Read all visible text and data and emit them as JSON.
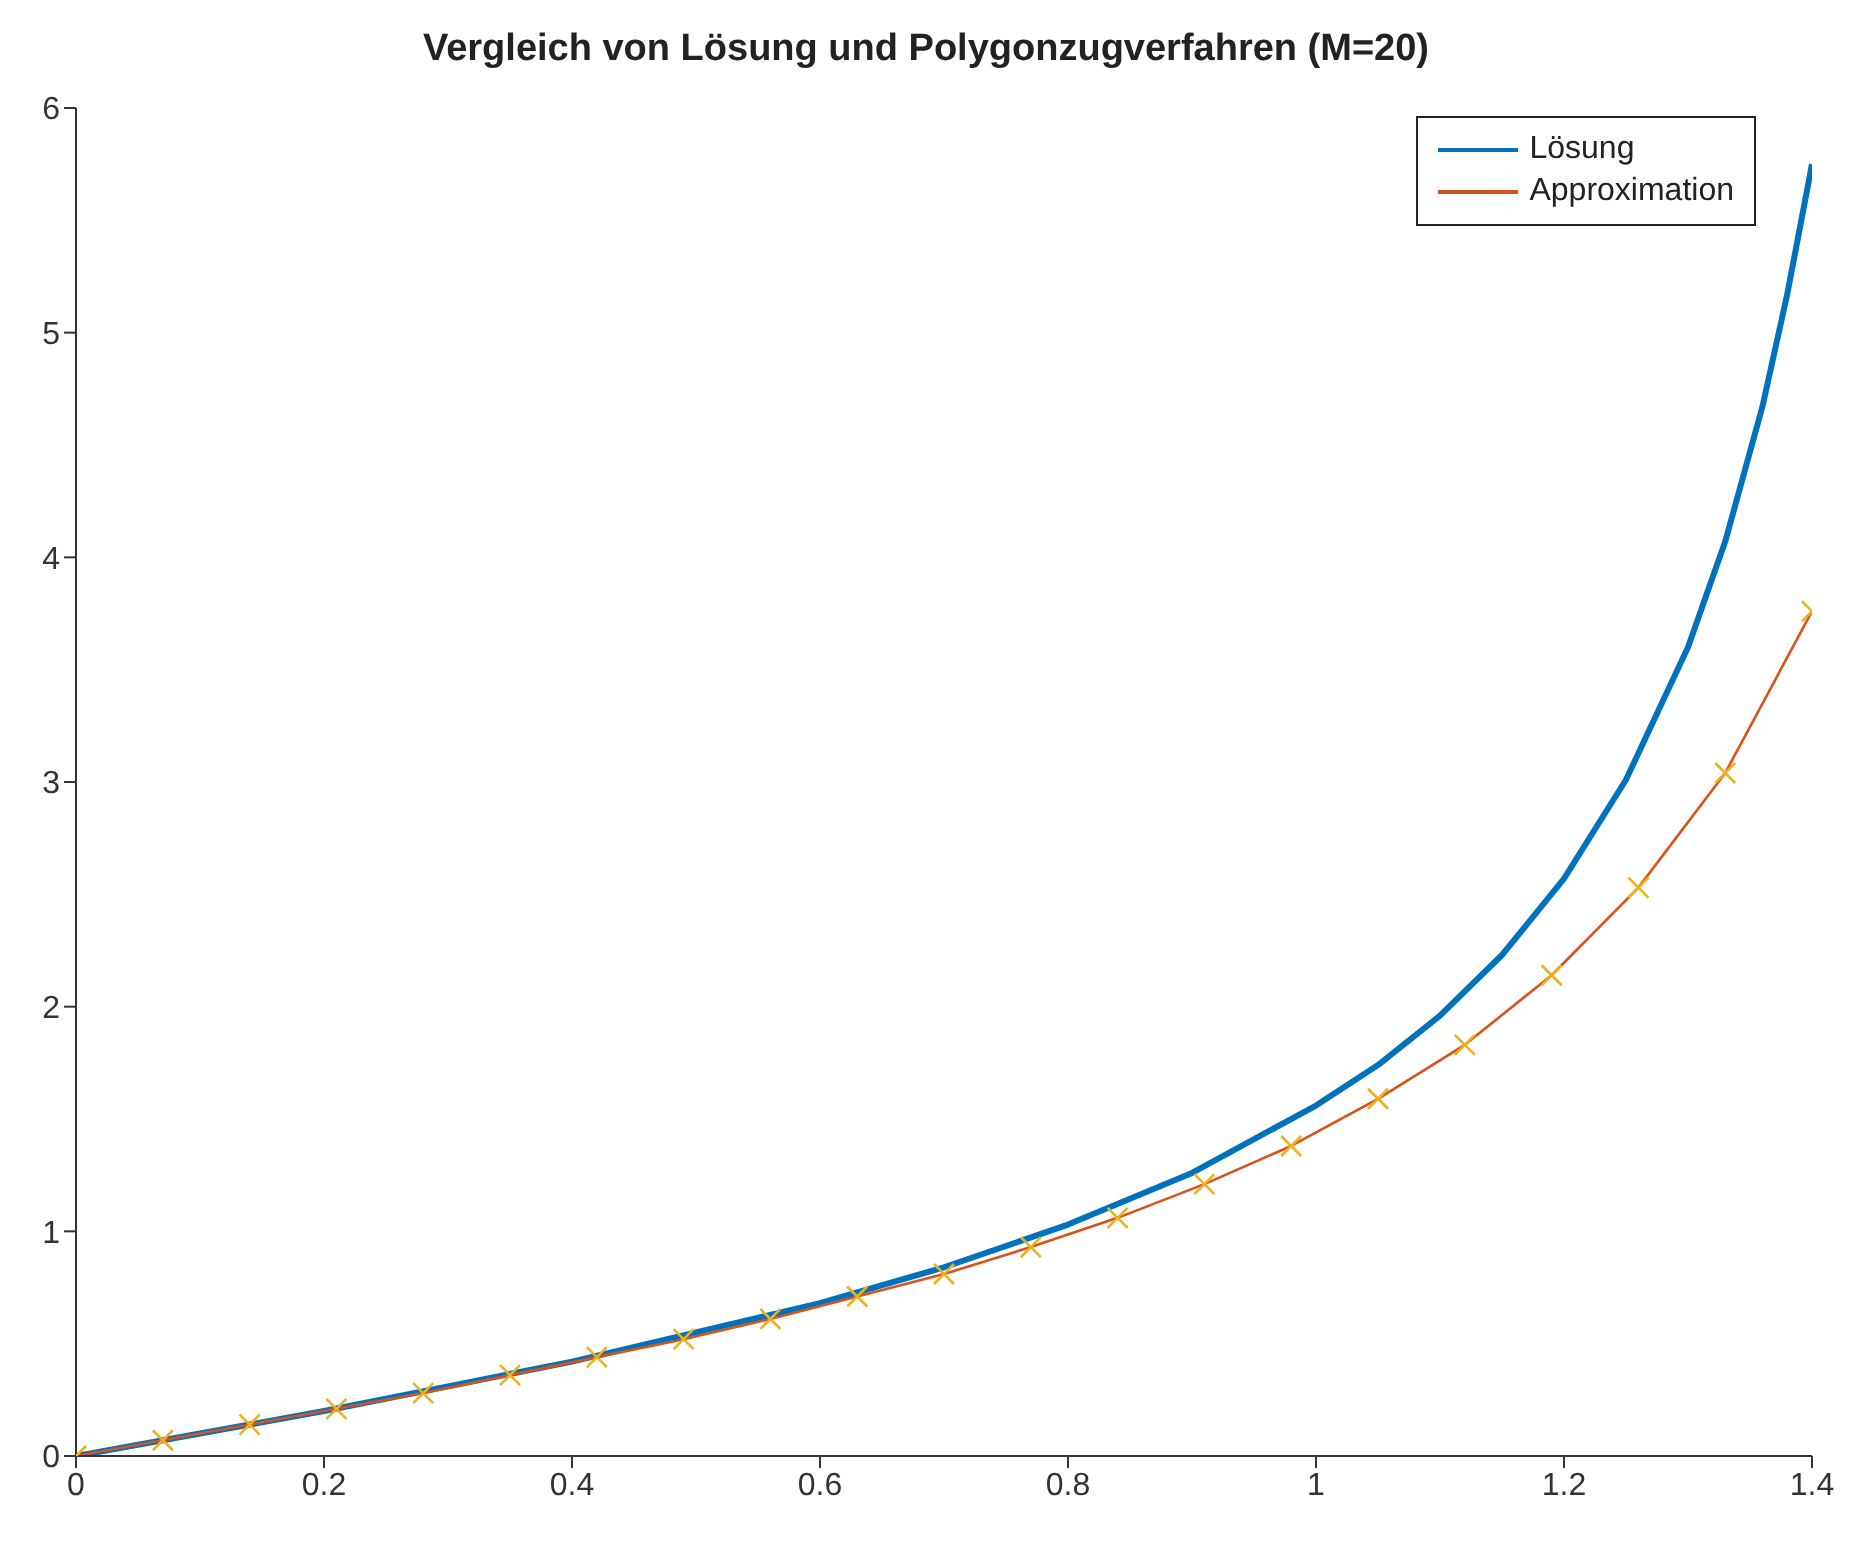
{
  "chart_data": {
    "type": "line",
    "title": "Vergleich von Lösung und Polygonzugverfahren (M=20)",
    "xlim": [
      0,
      1.4
    ],
    "xticks": [
      0,
      0.2,
      0.4,
      0.6,
      0.8,
      1,
      1.2,
      1.4
    ],
    "ylim": [
      0,
      6
    ],
    "yticks": [
      0,
      1,
      2,
      3,
      4,
      5,
      6
    ],
    "grid": false,
    "legend": "top right",
    "series": [
      {
        "name": "Lösung",
        "color": "#0072bd",
        "x": [
          0,
          0.1,
          0.2,
          0.3,
          0.4,
          0.5,
          0.6,
          0.7,
          0.8,
          0.9,
          1.0,
          1.05,
          1.1,
          1.15,
          1.2,
          1.25,
          1.3,
          1.33,
          1.36,
          1.38,
          1.4
        ],
        "values": [
          0,
          0.1,
          0.2,
          0.31,
          0.42,
          0.55,
          0.68,
          0.84,
          1.03,
          1.26,
          1.56,
          1.74,
          1.96,
          2.23,
          2.57,
          3.01,
          3.6,
          4.07,
          4.67,
          5.17,
          5.75
        ],
        "marker": "none"
      },
      {
        "name": "Approximation",
        "color": "#d95319",
        "x": [
          0,
          0.07,
          0.14,
          0.21,
          0.28,
          0.35,
          0.42,
          0.49,
          0.56,
          0.63,
          0.7,
          0.77,
          0.84,
          0.91,
          0.98,
          1.05,
          1.12,
          1.19,
          1.26,
          1.33,
          1.4
        ],
        "values": [
          0,
          0.07,
          0.14,
          0.21,
          0.28,
          0.36,
          0.44,
          0.52,
          0.61,
          0.71,
          0.81,
          0.93,
          1.06,
          1.21,
          1.38,
          1.59,
          1.83,
          2.14,
          2.53,
          3.04,
          3.76
        ],
        "marker": "none"
      },
      {
        "type": "scatter",
        "color": "#edb120",
        "marker": "cross",
        "x": [
          0,
          0.07,
          0.14,
          0.21,
          0.28,
          0.35,
          0.42,
          0.49,
          0.56,
          0.63,
          0.7,
          0.77,
          0.84,
          0.91,
          0.98,
          1.05,
          1.12,
          1.19,
          1.26,
          1.33,
          1.4
        ],
        "values": [
          0,
          0.07,
          0.14,
          0.21,
          0.28,
          0.36,
          0.44,
          0.52,
          0.61,
          0.71,
          0.81,
          0.93,
          1.06,
          1.21,
          1.38,
          1.59,
          1.83,
          2.14,
          2.53,
          3.04,
          3.76
        ]
      }
    ]
  }
}
